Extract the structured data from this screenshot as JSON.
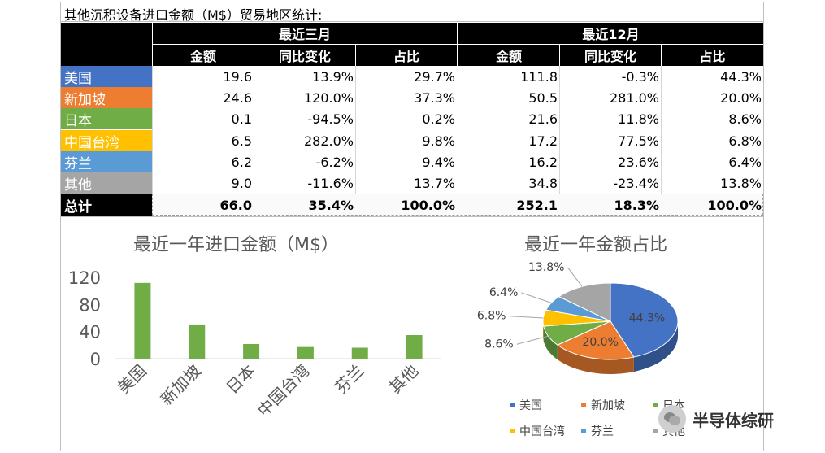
{
  "table": {
    "title": "其他沉积设备进口金额（M$）贸易地区统计:",
    "group_headers": [
      "最近三月",
      "最近12月"
    ],
    "col_headers": [
      "金额",
      "同比变化",
      "占比",
      "金额",
      "同比变化",
      "占比"
    ],
    "rows": [
      {
        "name": "美国",
        "color": "#4472C4",
        "text_color": "#ffffff",
        "values": [
          "19.6",
          "13.9%",
          "29.7%",
          "111.8",
          "-0.3%",
          "44.3%"
        ]
      },
      {
        "name": "新加坡",
        "color": "#ED7D31",
        "text_color": "#ffffff",
        "values": [
          "24.6",
          "120.0%",
          "37.3%",
          "50.5",
          "281.0%",
          "20.0%"
        ]
      },
      {
        "name": "日本",
        "color": "#70AD47",
        "text_color": "#ffffff",
        "values": [
          "0.1",
          "-94.5%",
          "0.2%",
          "21.6",
          "11.8%",
          "8.6%"
        ]
      },
      {
        "name": "中国台湾",
        "color": "#FFC000",
        "text_color": "#ffffff",
        "values": [
          "6.5",
          "282.0%",
          "9.8%",
          "17.2",
          "77.5%",
          "6.8%"
        ]
      },
      {
        "name": "芬兰",
        "color": "#5B9BD5",
        "text_color": "#ffffff",
        "values": [
          "6.2",
          "-6.2%",
          "9.4%",
          "16.2",
          "23.6%",
          "6.4%"
        ]
      },
      {
        "name": "其他",
        "color": "#A5A5A5",
        "text_color": "#ffffff",
        "values": [
          "9.0",
          "-11.6%",
          "13.7%",
          "34.8",
          "-23.4%",
          "13.8%"
        ]
      }
    ],
    "total": {
      "name": "总计",
      "values": [
        "66.0",
        "35.4%",
        "100.0%",
        "252.1",
        "18.3%",
        "100.0%"
      ]
    }
  },
  "chart_data": [
    {
      "type": "bar",
      "title": "最近一年进口金额（M$）",
      "categories": [
        "美国",
        "新加坡",
        "日本",
        "中国台湾",
        "芬兰",
        "其他"
      ],
      "values": [
        111.8,
        50.5,
        21.6,
        17.2,
        16.2,
        34.8
      ],
      "ylim": [
        0,
        120
      ],
      "yticks": [
        0,
        40,
        80,
        120
      ],
      "bar_color": "#70AD47",
      "grid": false
    },
    {
      "type": "pie",
      "title": "最近一年金额占比",
      "labels": [
        "美国",
        "新加坡",
        "日本",
        "中国台湾",
        "芬兰",
        "其他"
      ],
      "values": [
        44.3,
        20.0,
        8.6,
        6.8,
        6.4,
        13.8
      ],
      "value_labels": [
        "44.3%",
        "20.0%",
        "8.6%",
        "6.8%",
        "6.4%",
        "13.8%"
      ],
      "colors": [
        "#4472C4",
        "#ED7D31",
        "#70AD47",
        "#FFC000",
        "#5B9BD5",
        "#A5A5A5"
      ],
      "legend_position": "bottom"
    }
  ],
  "watermark": "半导体综研"
}
